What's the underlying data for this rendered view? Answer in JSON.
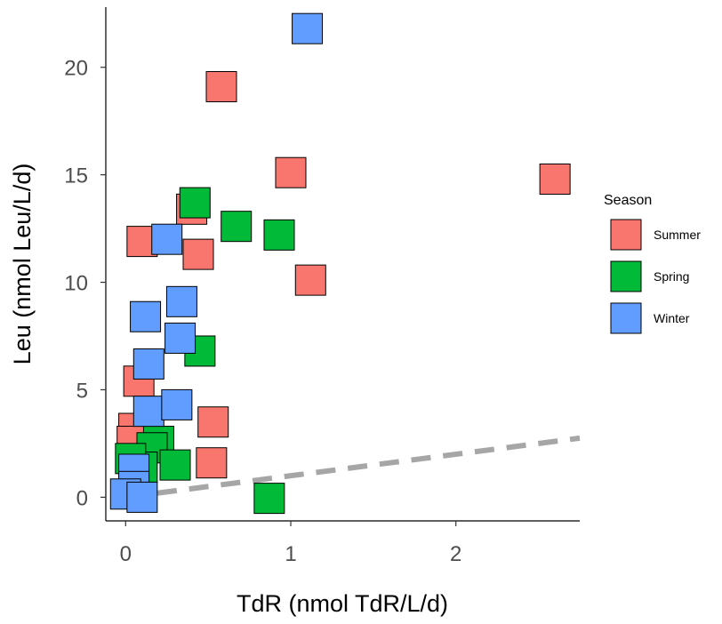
{
  "chart_data": {
    "type": "scatter",
    "xlabel": "TdR (nmol TdR/L/d)",
    "ylabel": "Leu (nmol Leu/L/d)",
    "xlim": [
      -0.12,
      2.75
    ],
    "ylim": [
      -1.1,
      22.8
    ],
    "x_ticks": [
      0,
      1,
      2
    ],
    "x_tick_labels": [
      "0",
      "1",
      "2"
    ],
    "y_ticks": [
      0,
      5,
      10,
      15,
      20
    ],
    "y_tick_labels": [
      "0",
      "5",
      "10",
      "15",
      "20"
    ],
    "grid": false,
    "legend": {
      "title": "Season",
      "position": "right"
    },
    "marker": "square",
    "series": [
      {
        "name": "Summer",
        "color": "#F8766D",
        "points": [
          [
            0.58,
            19.1
          ],
          [
            1.0,
            15.1
          ],
          [
            2.6,
            14.8
          ],
          [
            0.4,
            13.4
          ],
          [
            0.1,
            11.9
          ],
          [
            0.44,
            11.3
          ],
          [
            1.12,
            10.1
          ],
          [
            0.08,
            5.4
          ],
          [
            0.53,
            3.5
          ],
          [
            0.52,
            1.6
          ],
          [
            0.05,
            3.2
          ],
          [
            0.04,
            2.6
          ]
        ]
      },
      {
        "name": "Spring",
        "color": "#00BA38",
        "points": [
          [
            0.42,
            13.7
          ],
          [
            0.67,
            12.6
          ],
          [
            0.93,
            12.2
          ],
          [
            0.45,
            6.8
          ],
          [
            0.2,
            2.6
          ],
          [
            0.16,
            2.3
          ],
          [
            0.3,
            1.5
          ],
          [
            0.1,
            1.4
          ],
          [
            0.03,
            1.8
          ],
          [
            0.87,
            -0.05
          ]
        ]
      },
      {
        "name": "Winter",
        "color": "#619CFF",
        "points": [
          [
            1.1,
            21.8
          ],
          [
            0.25,
            12.0
          ],
          [
            0.34,
            9.1
          ],
          [
            0.12,
            8.4
          ],
          [
            0.33,
            7.4
          ],
          [
            0.14,
            6.2
          ],
          [
            0.14,
            4.0
          ],
          [
            0.31,
            4.3
          ],
          [
            0.05,
            1.3
          ],
          [
            0.05,
            0.5
          ],
          [
            0.0,
            0.15
          ],
          [
            0.1,
            0.0
          ]
        ]
      }
    ],
    "trend_line": {
      "style": "dashed",
      "color": "#a6a6a6",
      "x": [
        0.0,
        2.75
      ],
      "y": [
        0.0,
        2.75
      ]
    }
  }
}
